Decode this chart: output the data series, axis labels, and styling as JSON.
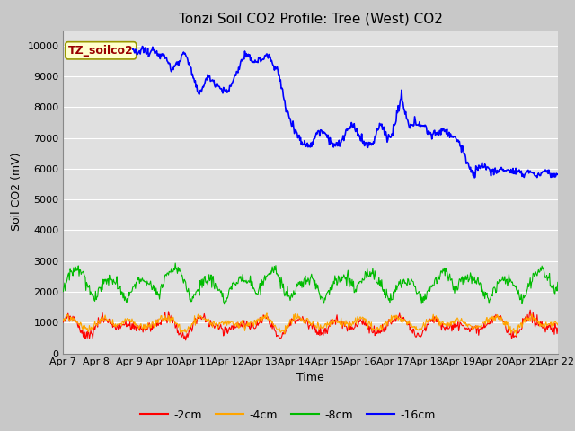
{
  "title": "Tonzi Soil CO2 Profile: Tree (West) CO2",
  "ylabel": "Soil CO2 (mV)",
  "xlabel": "Time",
  "annotation": "TZ_soilco2",
  "ylim": [
    0,
    10500
  ],
  "yticks": [
    0,
    1000,
    2000,
    3000,
    4000,
    5000,
    6000,
    7000,
    8000,
    9000,
    10000
  ],
  "colors": {
    "-2cm": "#ff0000",
    "-4cm": "#ffa500",
    "-8cm": "#00bb00",
    "-16cm": "#0000ff"
  },
  "fig_bg_color": "#c8c8c8",
  "plot_bg_color": "#e0e0e0",
  "legend_labels": [
    "-2cm",
    "-4cm",
    "-8cm",
    "-16cm"
  ],
  "x_tick_labels": [
    "Apr 7",
    "Apr 8",
    "Apr 9",
    "Apr 10",
    "Apr 11",
    "Apr 12",
    "Apr 13",
    "Apr 14",
    "Apr 15",
    "Apr 16",
    "Apr 17",
    "Apr 18",
    "Apr 19",
    "Apr 20",
    "Apr 21",
    "Apr 22"
  ],
  "n_days": 15,
  "title_fontsize": 11,
  "tick_fontsize": 8,
  "label_fontsize": 9
}
